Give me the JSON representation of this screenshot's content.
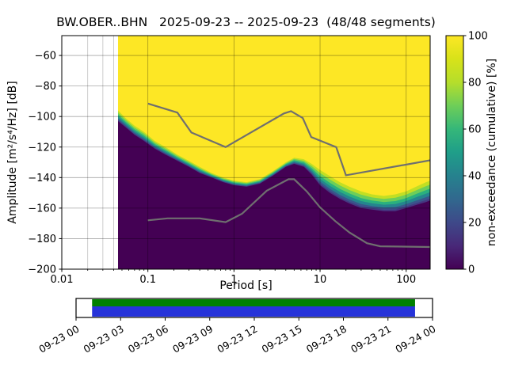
{
  "chart_data": {
    "type": "heatmap",
    "title": "BW.OBER..BHN   2025-09-23 -- 2025-09-23  (48/48 segments)",
    "xlabel": "Period [s]",
    "ylabel": "Amplitude [m²/s⁴/Hz] [dB]",
    "colorbar_label": "non-exceedance (cumulative) [%]",
    "x_scale": "log",
    "xlim": [
      0.01,
      190
    ],
    "ylim": [
      -200,
      -47
    ],
    "x_ticks": [
      0.01,
      0.1,
      1,
      10,
      100
    ],
    "x_tick_labels": [
      "0.01",
      "0.1",
      "1",
      "10",
      "100"
    ],
    "y_ticks": [
      -60,
      -80,
      -100,
      -120,
      -140,
      -160,
      -180,
      -200
    ],
    "y_tick_labels": [
      "−60",
      "−80",
      "−100",
      "−120",
      "−140",
      "−160",
      "−180",
      "−200"
    ],
    "colorbar_ticks": [
      0,
      20,
      40,
      60,
      80,
      100
    ],
    "colorbar_tick_labels": [
      "0",
      "20",
      "40",
      "60",
      "80",
      "100"
    ],
    "colormap": "viridis",
    "colormap_stops": [
      [
        0,
        "#440154"
      ],
      [
        0.1,
        "#482878"
      ],
      [
        0.2,
        "#3e4989"
      ],
      [
        0.3,
        "#31688e"
      ],
      [
        0.4,
        "#26828e"
      ],
      [
        0.5,
        "#1f9e89"
      ],
      [
        0.6,
        "#35b779"
      ],
      [
        0.7,
        "#6ece58"
      ],
      [
        0.8,
        "#b5de2b"
      ],
      [
        0.9,
        "#d8e219"
      ],
      [
        1,
        "#fde725"
      ]
    ],
    "grid": {
      "major_x": [
        0.01,
        0.1,
        1,
        10,
        100
      ],
      "visible_minor_x": [
        0.02,
        0.03,
        0.04
      ],
      "major_y": [
        -60,
        -80,
        -100,
        -120,
        -140,
        -160,
        -180,
        -200
      ]
    },
    "data_period_start": 0.045,
    "distribution": {
      "periods": [
        0.045,
        0.055,
        0.07,
        0.09,
        0.12,
        0.16,
        0.22,
        0.3,
        0.4,
        0.55,
        0.75,
        1.0,
        1.4,
        2.0,
        2.8,
        4.0,
        5.0,
        6.5,
        8.0,
        10,
        13,
        17,
        22,
        30,
        40,
        55,
        75,
        100,
        130,
        170,
        190
      ],
      "purple_top_db": [
        -103,
        -107,
        -112,
        -116,
        -121,
        -125,
        -129,
        -133,
        -137,
        -140,
        -143,
        -145,
        -146,
        -144,
        -139,
        -133,
        -131,
        -133,
        -138,
        -145,
        -150,
        -154,
        -157,
        -160,
        -161,
        -162,
        -162,
        -160,
        -158,
        -156,
        -155
      ],
      "yellow_bottom_db": [
        -96,
        -101,
        -106,
        -110,
        -116,
        -120,
        -125,
        -129,
        -133,
        -137,
        -140,
        -142,
        -143,
        -141,
        -136,
        -130,
        -127,
        -128,
        -131,
        -135,
        -139,
        -143,
        -146,
        -149,
        -151,
        -152,
        -151,
        -149,
        -146,
        -143,
        -142
      ],
      "bands": [
        {
          "f": 1.0,
          "color": "#c2df23"
        },
        {
          "f": 0.8,
          "color": "#6ece58"
        },
        {
          "f": 0.6,
          "color": "#2ab07f"
        },
        {
          "f": 0.42,
          "color": "#25858e"
        },
        {
          "f": 0.24,
          "color": "#39568c"
        },
        {
          "f": 0.1,
          "color": "#453781"
        }
      ],
      "base_color": "#440154",
      "top_color": "#fde725"
    },
    "noise_models": {
      "color": "#6f6f6f",
      "nhnm": [
        [
          0.1,
          -91.5
        ],
        [
          0.22,
          -97.4
        ],
        [
          0.32,
          -110.5
        ],
        [
          0.8,
          -120
        ],
        [
          3.8,
          -98
        ],
        [
          4.6,
          -96.5
        ],
        [
          6.3,
          -101
        ],
        [
          7.9,
          -113.5
        ],
        [
          15.4,
          -120
        ],
        [
          20,
          -138.5
        ],
        [
          190,
          -128.7
        ]
      ],
      "nlnm": [
        [
          0.1,
          -168
        ],
        [
          0.17,
          -166.7
        ],
        [
          0.4,
          -166.7
        ],
        [
          0.8,
          -169.2
        ],
        [
          1.24,
          -163.7
        ],
        [
          2.4,
          -148.6
        ],
        [
          4.3,
          -141.1
        ],
        [
          5,
          -141.1
        ],
        [
          7,
          -149
        ],
        [
          10,
          -159.5
        ],
        [
          15,
          -168.5
        ],
        [
          22,
          -176
        ],
        [
          35,
          -183
        ],
        [
          50,
          -185
        ],
        [
          190,
          -185.5
        ]
      ]
    }
  },
  "timeline": {
    "tick_labels": [
      "09-23 00",
      "09-23 03",
      "09-23 06",
      "09-23 09",
      "09-23 12",
      "09-23 15",
      "09-23 18",
      "09-23 21",
      "09-24 00"
    ],
    "coverage": {
      "start_frac": 0.045,
      "end_frac": 0.951,
      "green": "#008000",
      "blue": "#2633d9"
    }
  }
}
